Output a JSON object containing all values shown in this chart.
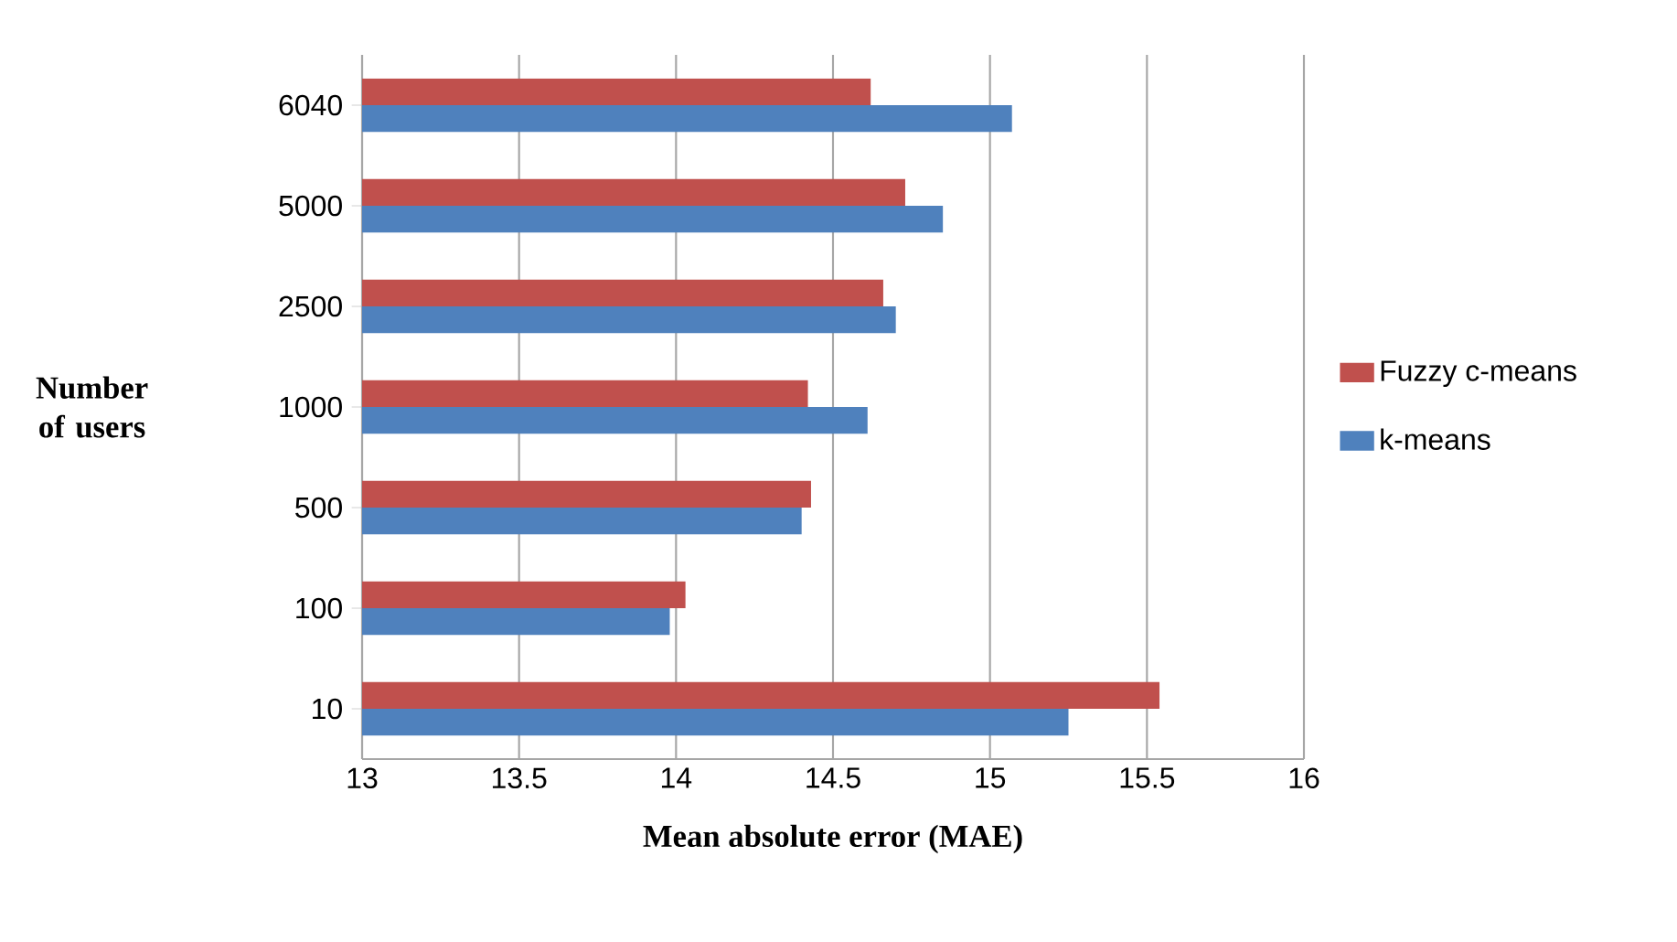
{
  "chart_data": {
    "type": "bar",
    "orientation": "horizontal",
    "xlabel": "Mean absolute error (MAE)",
    "ylabel": "Number of users",
    "categories": [
      "6040",
      "5000",
      "2500",
      "1000",
      "500",
      "100",
      "10"
    ],
    "series": [
      {
        "name": "Fuzzy c-means",
        "color": "#c0504d",
        "values": [
          14.62,
          14.73,
          14.66,
          14.42,
          14.43,
          14.03,
          15.54
        ]
      },
      {
        "name": "k-means",
        "color": "#4f81bd",
        "values": [
          15.07,
          14.85,
          14.7,
          14.61,
          14.4,
          13.98,
          15.25
        ]
      }
    ],
    "xlim": [
      13,
      16
    ],
    "xticks": [
      13,
      13.5,
      14,
      14.5,
      15,
      15.5,
      16
    ],
    "grid": "x",
    "legend": "right"
  }
}
